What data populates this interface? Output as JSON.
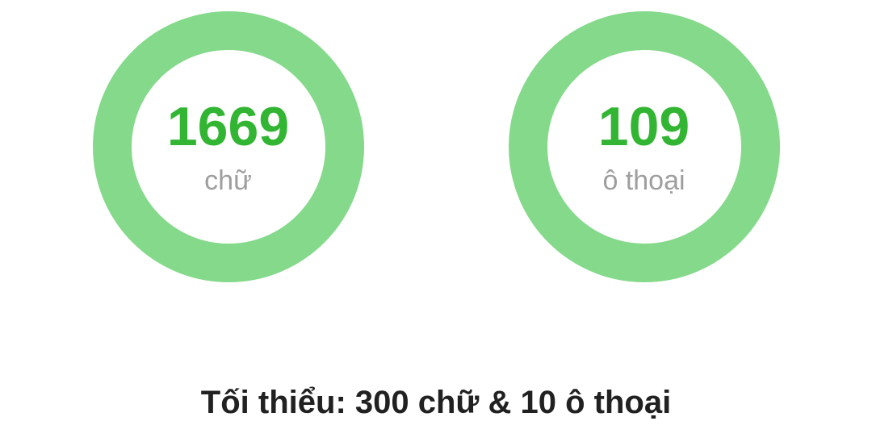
{
  "counters": [
    {
      "value": "1669",
      "label": "chữ"
    },
    {
      "value": "109",
      "label": "ô thoại"
    }
  ],
  "footer": {
    "text": "Tối thiểu: 300 chữ & 10 ô thoại"
  },
  "colors": {
    "ring": "#85d98b",
    "counter_value": "#32b532",
    "counter_label": "#9e9e9e",
    "footer_text": "#212121",
    "background": "#ffffff"
  }
}
